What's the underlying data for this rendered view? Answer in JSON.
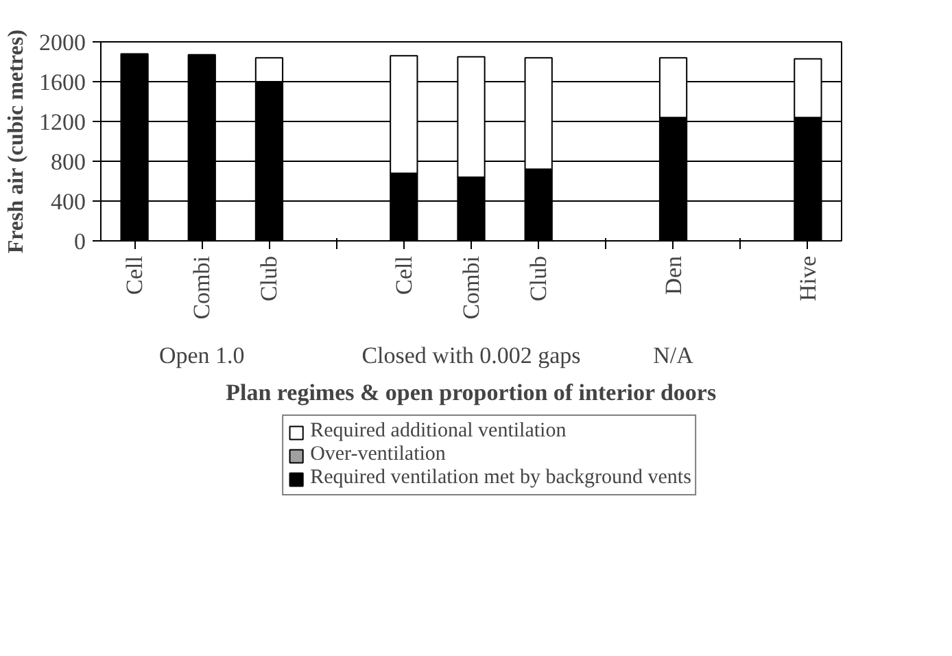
{
  "chart_data": {
    "type": "bar",
    "stacked": true,
    "categories": [
      "Cell",
      "Combi",
      "Club",
      null,
      "Cell",
      "Combi",
      "Club",
      null,
      "Den",
      null,
      "Hive"
    ],
    "series": [
      {
        "name": "Required ventilation met by background vents",
        "color": "#000000",
        "values": [
          1880,
          1870,
          1600,
          null,
          680,
          640,
          720,
          null,
          1240,
          null,
          1240
        ]
      },
      {
        "name": "Over-ventilation",
        "color": "#a0a0a0",
        "values": [
          0,
          0,
          0,
          null,
          0,
          0,
          0,
          null,
          0,
          null,
          0
        ]
      },
      {
        "name": "Required additional ventilation",
        "color": "#ffffff",
        "values": [
          0,
          0,
          240,
          null,
          1180,
          1210,
          1120,
          null,
          600,
          null,
          590
        ]
      }
    ],
    "ylabel": "Fresh air (cubic metres)",
    "xlabel": "Plan regimes & open proportion of interior doors",
    "annotations": [
      "Open 1.0",
      "Closed with 0.002 gaps",
      "N/A"
    ],
    "ylim": [
      0,
      2000
    ],
    "yticks": [
      0,
      400,
      800,
      1200,
      1600,
      2000
    ],
    "grid": "y",
    "legend": "bottom"
  }
}
